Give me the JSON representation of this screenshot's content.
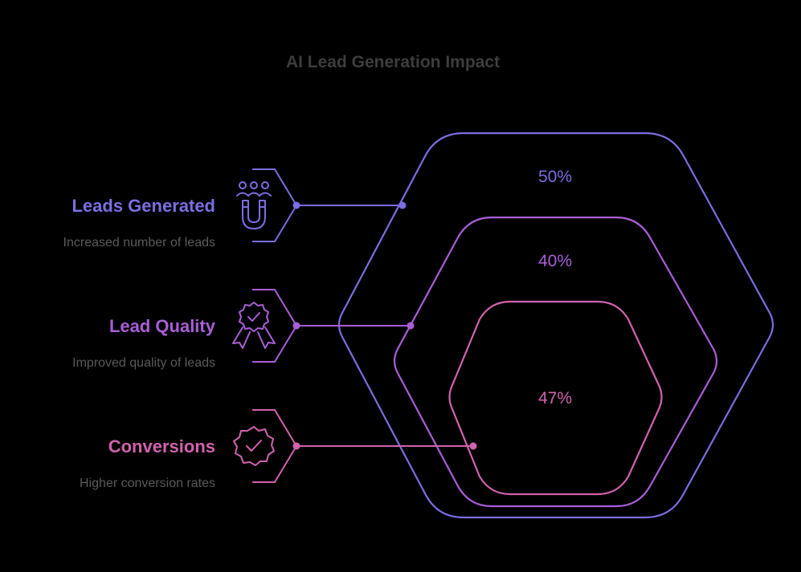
{
  "title": "AI Lead Generation Impact",
  "colors": {
    "background": "#000000",
    "title": "#3d3d3d",
    "description": "#5a5a5a",
    "outer": "#7b6ee0",
    "middle": "#a85fd6",
    "inner": "#d163ae"
  },
  "items": [
    {
      "label": "Leads Generated",
      "description": "Increased number of leads",
      "value": "50%",
      "icon": "users-magnet-icon"
    },
    {
      "label": "Lead Quality",
      "description": "Improved quality of leads",
      "value": "40%",
      "icon": "award-badge-icon"
    },
    {
      "label": "Conversions",
      "description": "Higher conversion rates",
      "value": "47%",
      "icon": "verified-badge-icon"
    }
  ]
}
